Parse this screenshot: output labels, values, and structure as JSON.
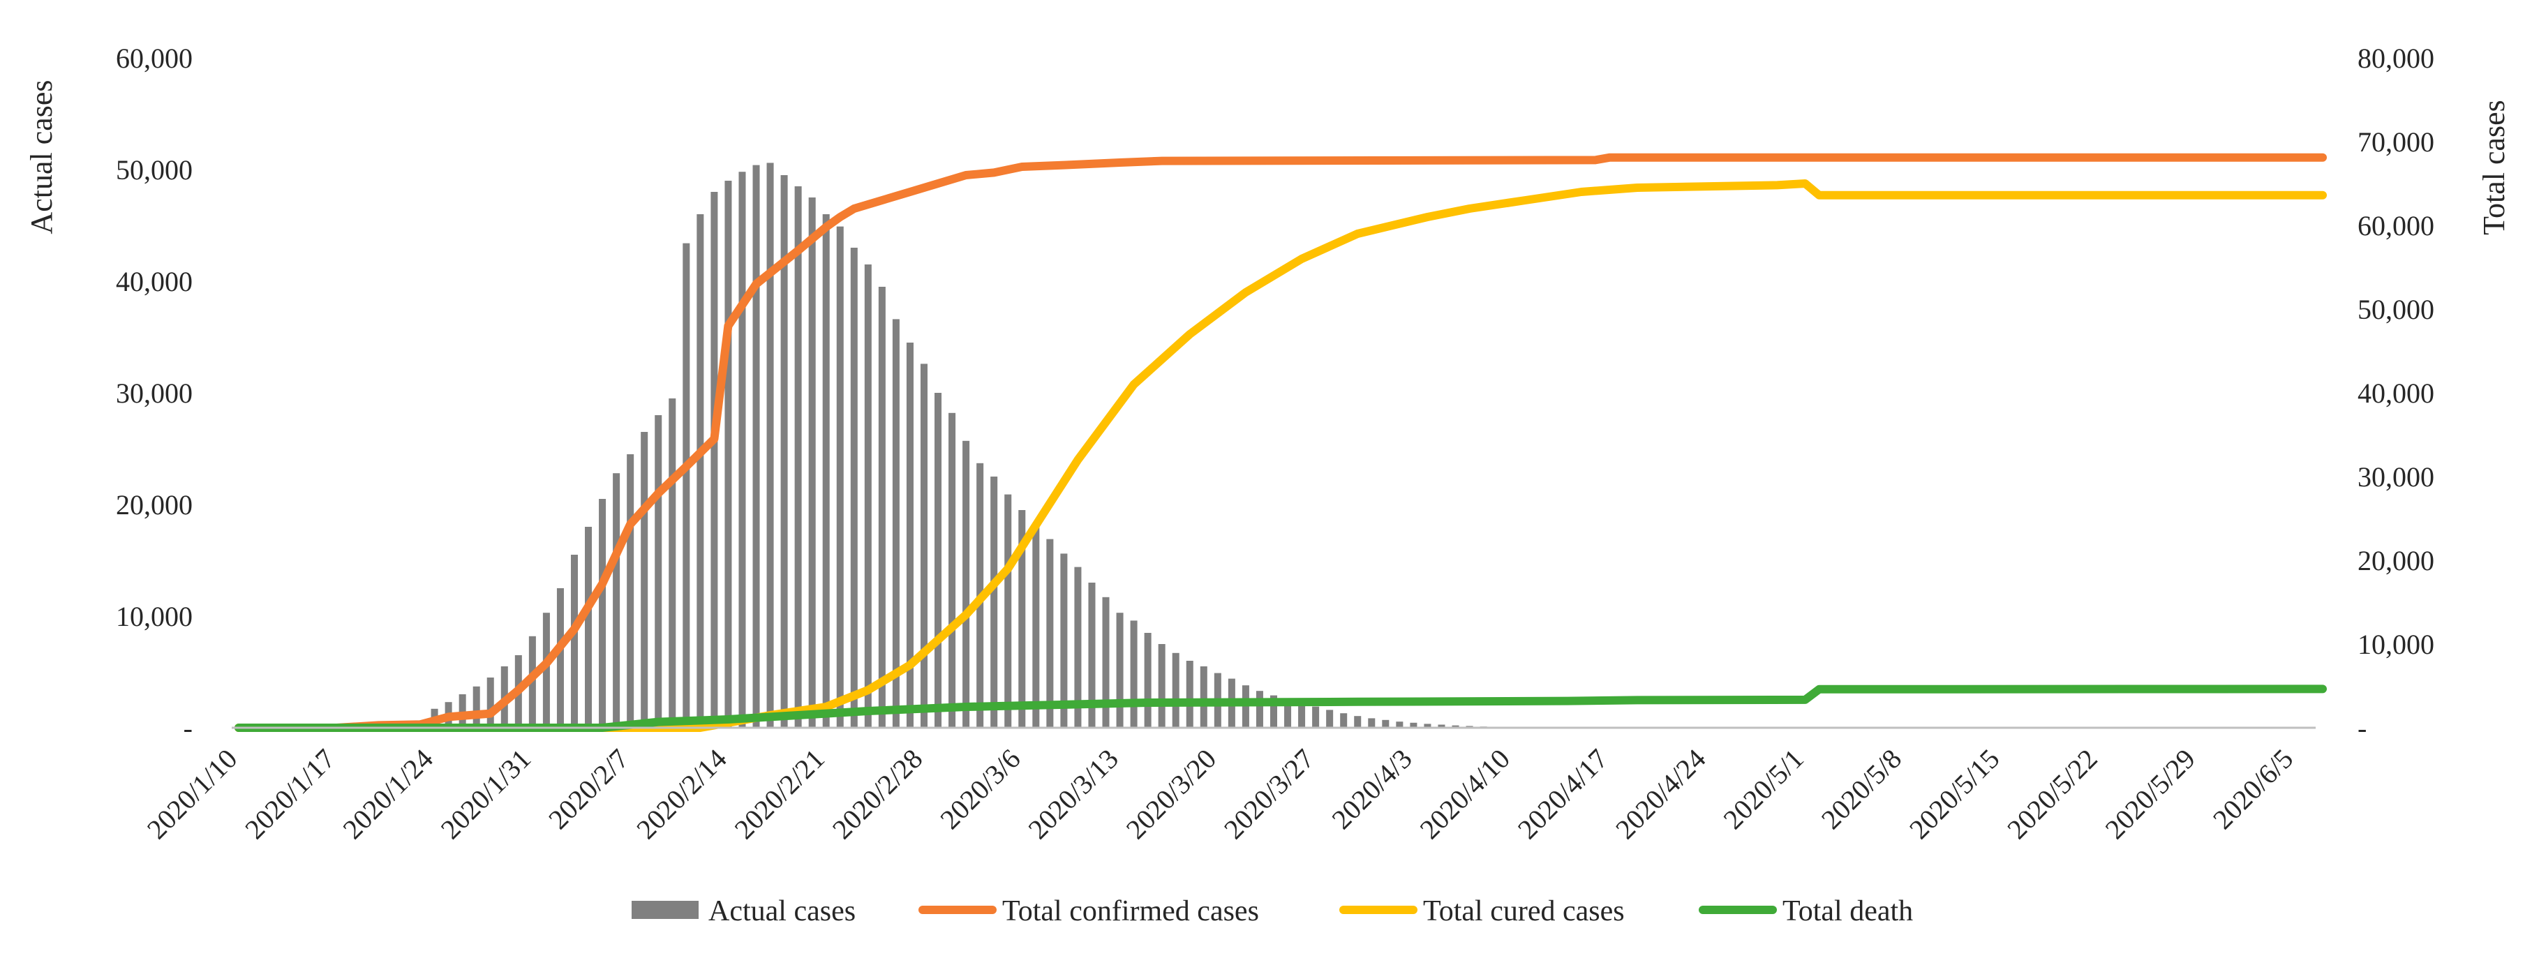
{
  "chart_data": {
    "type": "bar+line",
    "title": "",
    "xlabel": "",
    "ylabel_left": "Actual cases",
    "ylabel_right": "Total  cases",
    "ylim_left": [
      0,
      60000
    ],
    "ylim_right": [
      0,
      80000
    ],
    "yticks_left": [
      0,
      10000,
      20000,
      30000,
      40000,
      50000,
      60000
    ],
    "yticks_left_labels": [
      "-",
      "10,000",
      "20,000",
      "30,000",
      "40,000",
      "50,000",
      "60,000"
    ],
    "yticks_right": [
      0,
      10000,
      20000,
      30000,
      40000,
      50000,
      60000,
      70000,
      80000
    ],
    "yticks_right_labels": [
      "-",
      "10,000",
      "20,000",
      "30,000",
      "40,000",
      "50,000",
      "60,000",
      "70,000",
      "80,000"
    ],
    "start_date": "2020/1/10",
    "num_days": 149,
    "xtick_every_days": 7,
    "xtick_labels": [
      "2020/1/10",
      "2020/1/17",
      "2020/1/24",
      "2020/1/31",
      "2020/2/7",
      "2020/2/14",
      "2020/2/21",
      "2020/2/28",
      "2020/3/6",
      "2020/3/13",
      "2020/3/20",
      "2020/3/27",
      "2020/4/3",
      "2020/4/10",
      "2020/4/17",
      "2020/4/24",
      "2020/5/1",
      "2020/5/8",
      "2020/5/15",
      "2020/5/22",
      "2020/5/29",
      "2020/6/5"
    ],
    "legend_position": "bottom",
    "bar_series": {
      "name": "Actual cases",
      "axis": "left",
      "color": "#808080",
      "start_index": 14,
      "values": [
        1700,
        2300,
        3000,
        3700,
        4500,
        5500,
        6500,
        8200,
        10300,
        12500,
        15500,
        18000,
        20500,
        22800,
        24500,
        26500,
        28000,
        29500,
        43400,
        46000,
        48000,
        49000,
        49800,
        50400,
        50600,
        49500,
        48500,
        47500,
        46000,
        44900,
        43000,
        41500,
        39500,
        36600,
        34500,
        32600,
        30000,
        28200,
        25700,
        23700,
        22500,
        20900,
        19500,
        18000,
        16900,
        15600,
        14400,
        13000,
        11700,
        10300,
        9600,
        8500,
        7500,
        6700,
        6000,
        5500,
        4900,
        4400,
        3800,
        3300,
        2900,
        2500,
        2200,
        1900,
        1600,
        1300,
        1050,
        850,
        700,
        550,
        450,
        350,
        280,
        210,
        160,
        110,
        70,
        40
      ]
    },
    "line_series": [
      {
        "name": "Total confirmed cases",
        "axis": "right",
        "color": "#F47C30",
        "points": [
          [
            0,
            0
          ],
          [
            7,
            0
          ],
          [
            10,
            300
          ],
          [
            13,
            400
          ],
          [
            15,
            1300
          ],
          [
            18,
            1700
          ],
          [
            20,
            4500
          ],
          [
            22,
            7700
          ],
          [
            24,
            11800
          ],
          [
            26,
            17200
          ],
          [
            28,
            24300
          ],
          [
            30,
            28000
          ],
          [
            32,
            31200
          ],
          [
            34,
            34500
          ],
          [
            35,
            48000
          ],
          [
            37,
            53000
          ],
          [
            40,
            57000
          ],
          [
            42,
            59800
          ],
          [
            43,
            61000
          ],
          [
            44,
            62000
          ],
          [
            45,
            62500
          ],
          [
            46,
            63000
          ],
          [
            48,
            64000
          ],
          [
            50,
            65000
          ],
          [
            52,
            66000
          ],
          [
            54,
            66300
          ],
          [
            56,
            67000
          ],
          [
            59,
            67200
          ],
          [
            63,
            67500
          ],
          [
            66,
            67700
          ],
          [
            97,
            67800
          ],
          [
            98,
            68100
          ],
          [
            149,
            68100
          ]
        ]
      },
      {
        "name": "Total cured cases",
        "axis": "right",
        "color": "#FFC000",
        "points": [
          [
            0,
            0
          ],
          [
            33,
            0
          ],
          [
            38,
            1500
          ],
          [
            42,
            2500
          ],
          [
            45,
            4500
          ],
          [
            48,
            7500
          ],
          [
            52,
            13500
          ],
          [
            55,
            19000
          ],
          [
            60,
            32000
          ],
          [
            64,
            41000
          ],
          [
            68,
            47000
          ],
          [
            72,
            52000
          ],
          [
            76,
            56000
          ],
          [
            80,
            59000
          ],
          [
            85,
            61000
          ],
          [
            88,
            62000
          ],
          [
            92,
            63000
          ],
          [
            96,
            64000
          ],
          [
            100,
            64500
          ],
          [
            110,
            64800
          ],
          [
            112,
            65000
          ],
          [
            113,
            63600
          ],
          [
            149,
            63600
          ]
        ]
      },
      {
        "name": "Total death",
        "axis": "right",
        "color": "#3FAA37",
        "points": [
          [
            0,
            0
          ],
          [
            26,
            0
          ],
          [
            30,
            700
          ],
          [
            35,
            1000
          ],
          [
            40,
            1500
          ],
          [
            45,
            2000
          ],
          [
            52,
            2500
          ],
          [
            60,
            2800
          ],
          [
            65,
            3000
          ],
          [
            80,
            3100
          ],
          [
            95,
            3200
          ],
          [
            100,
            3300
          ],
          [
            112,
            3340
          ],
          [
            113,
            4600
          ],
          [
            149,
            4630
          ]
        ]
      }
    ],
    "legend": [
      {
        "label": "Actual cases",
        "kind": "bar",
        "color": "#808080"
      },
      {
        "label": "Total confirmed cases",
        "kind": "line",
        "color": "#F47C30"
      },
      {
        "label": "Total cured cases",
        "kind": "line",
        "color": "#FFC000"
      },
      {
        "label": "Total death",
        "kind": "line",
        "color": "#3FAA37"
      }
    ]
  }
}
